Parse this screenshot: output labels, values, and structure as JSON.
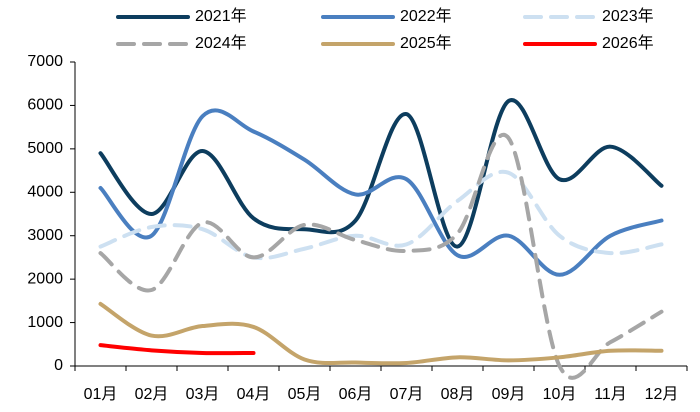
{
  "chart_data": {
    "type": "line",
    "categories": [
      "01月",
      "02月",
      "03月",
      "04月",
      "05月",
      "06月",
      "07月",
      "08月",
      "09月",
      "10月",
      "11月",
      "12月"
    ],
    "series": [
      {
        "name": "2021年",
        "color": "#0d3d5e",
        "dash": false,
        "values": [
          4900,
          3500,
          4950,
          3400,
          3150,
          3350,
          5800,
          2750,
          6100,
          4300,
          5050,
          4150
        ]
      },
      {
        "name": "2022年",
        "color": "#4a7fc0",
        "dash": false,
        "values": [
          4100,
          3000,
          5750,
          5400,
          4750,
          3950,
          4300,
          2550,
          3000,
          2100,
          3000,
          3350
        ]
      },
      {
        "name": "2023年",
        "color": "#cde0f1",
        "dash": true,
        "values": [
          2750,
          3200,
          3150,
          2500,
          2700,
          3000,
          2800,
          3800,
          4450,
          3000,
          2600,
          2800
        ]
      },
      {
        "name": "2024年",
        "color": "#a6a6a6",
        "dash": true,
        "values": [
          2600,
          1750,
          3300,
          2500,
          3250,
          2900,
          2650,
          3050,
          5250,
          0,
          550,
          1250
        ]
      },
      {
        "name": "2025年",
        "color": "#c4a46a",
        "dash": false,
        "values": [
          1430,
          700,
          920,
          900,
          150,
          80,
          70,
          200,
          130,
          200,
          350,
          350
        ]
      },
      {
        "name": "2026年",
        "color": "#ff0000",
        "dash": false,
        "values": [
          480,
          360,
          300,
          300,
          null,
          null,
          null,
          null,
          null,
          null,
          null,
          null
        ]
      }
    ],
    "ylim": [
      0,
      7000
    ],
    "yticks": [
      0,
      1000,
      2000,
      3000,
      4000,
      5000,
      6000,
      7000
    ],
    "grid": false
  }
}
